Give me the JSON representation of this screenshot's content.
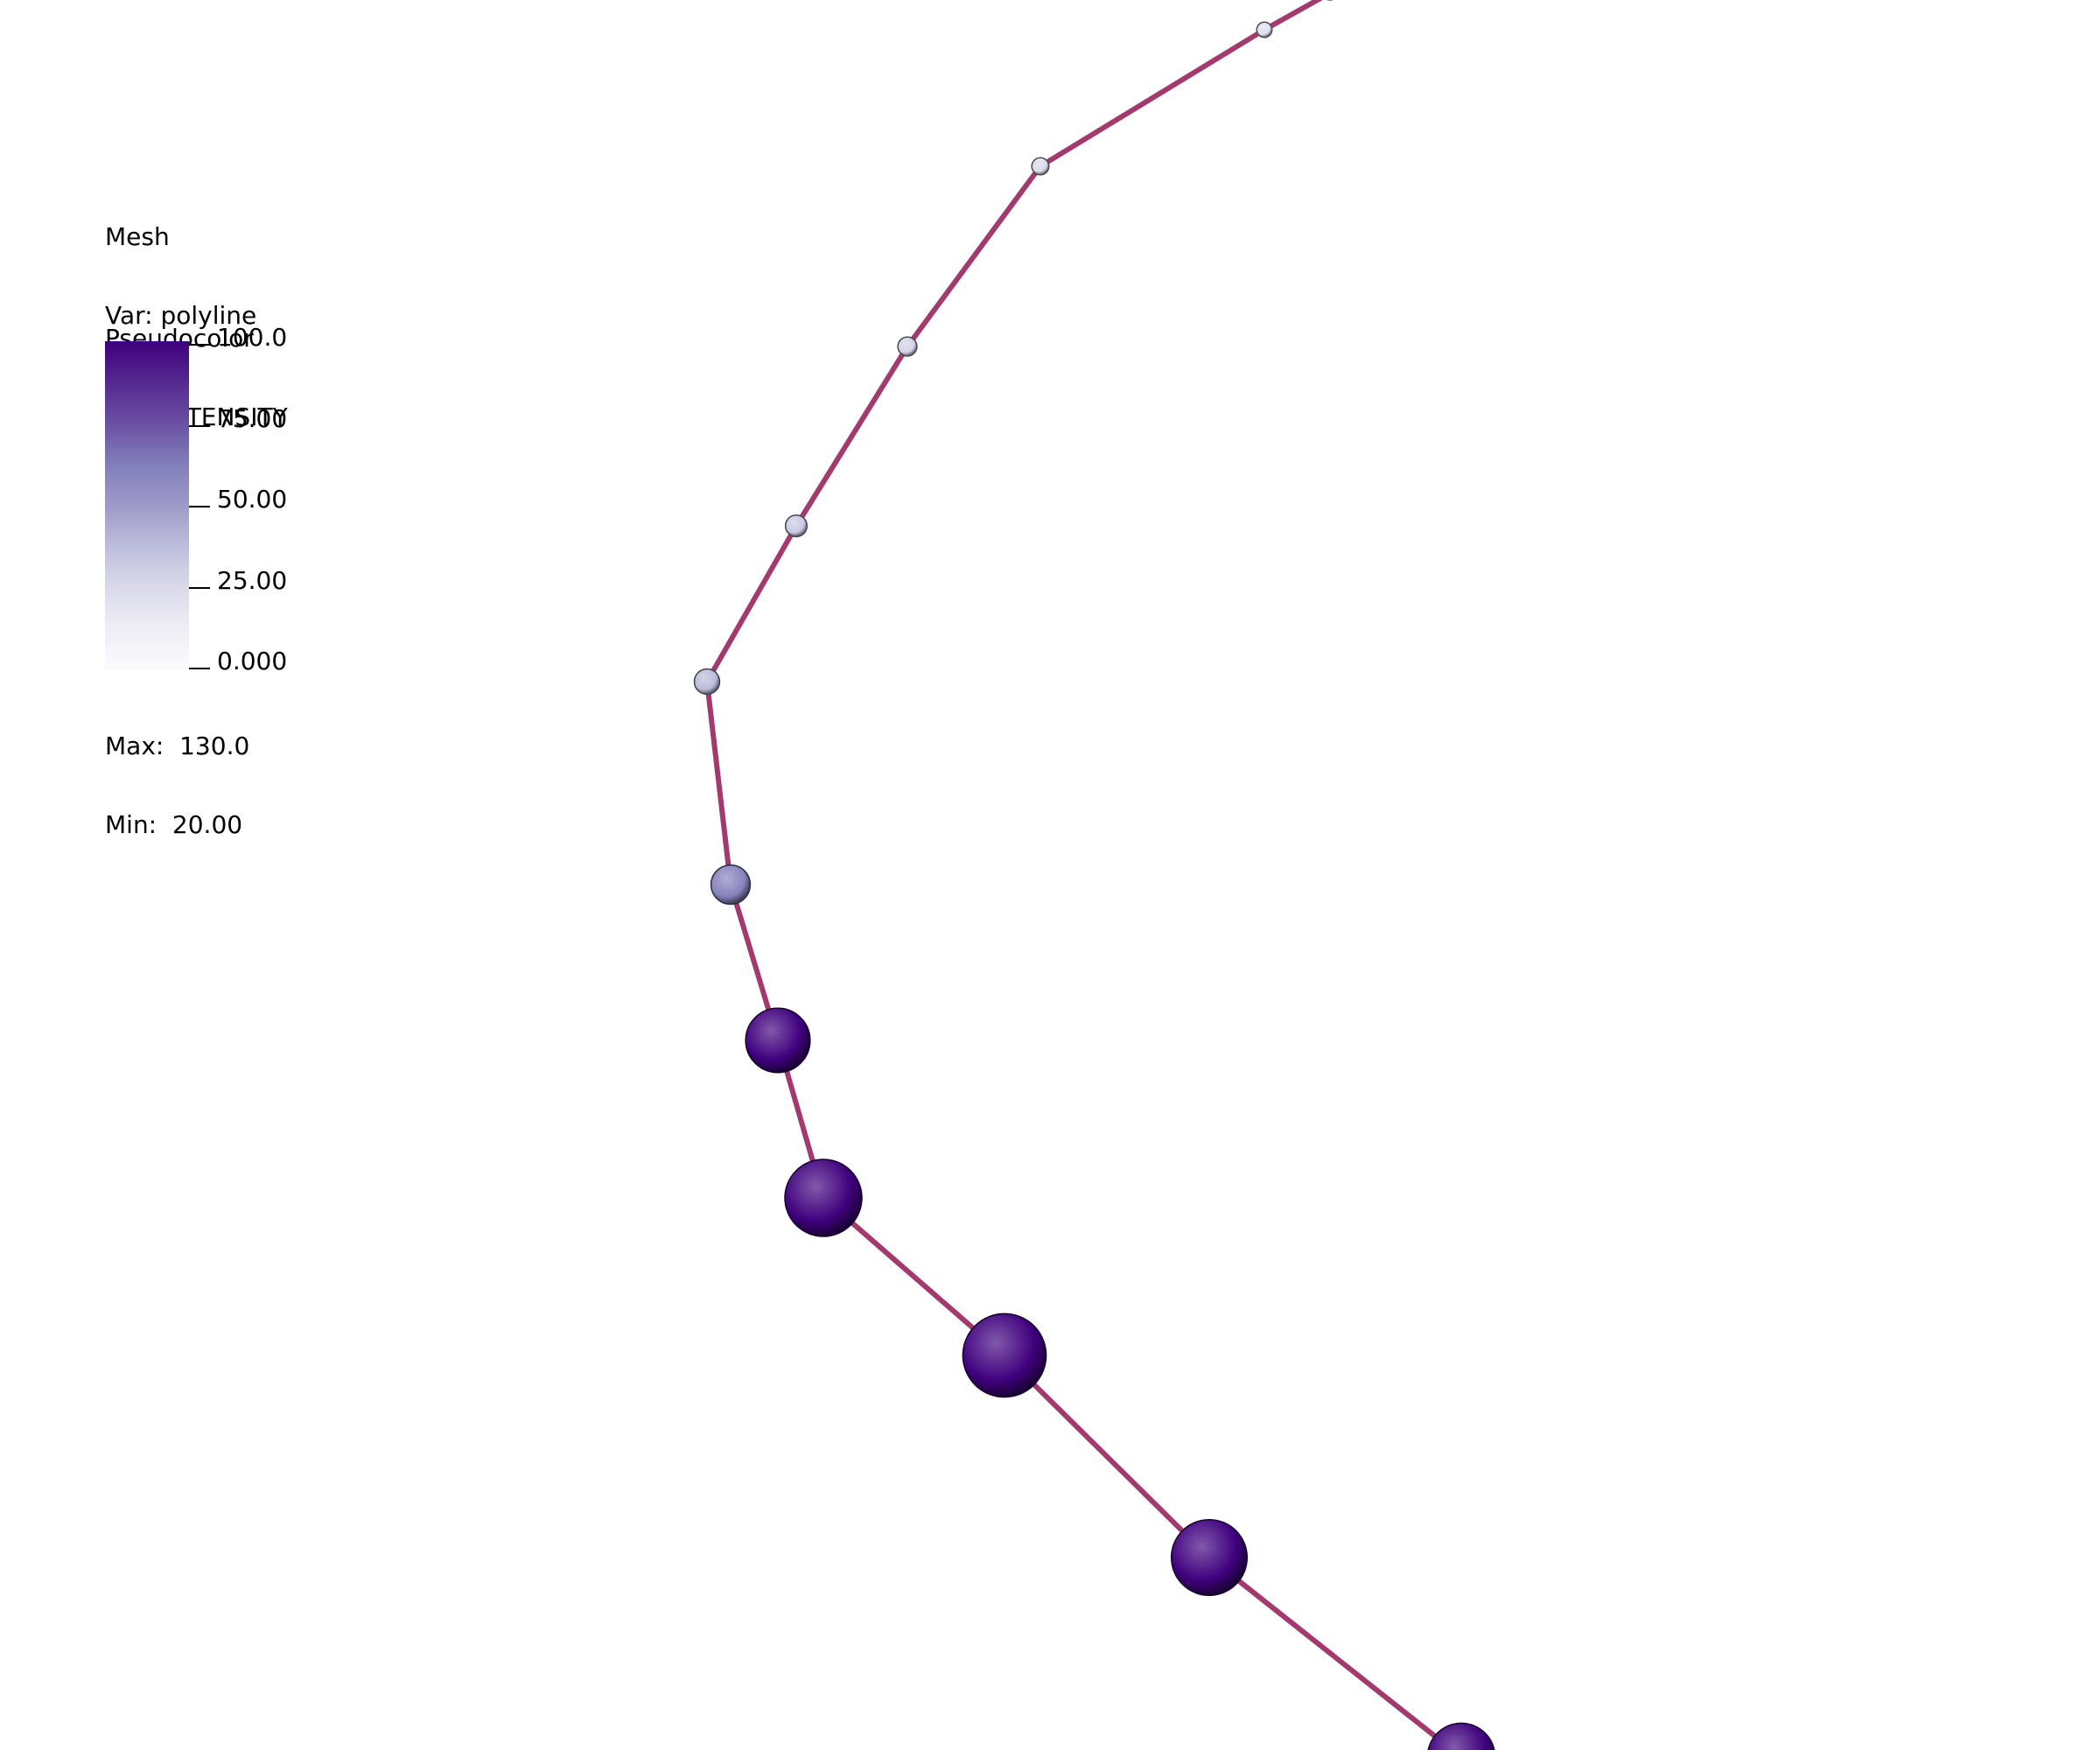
{
  "legend": {
    "mesh": {
      "title": "Mesh",
      "var": "Var: polyline"
    },
    "pseudocolor": {
      "title": "Pseudocolor",
      "var": "Var: INTENSITY",
      "ticks": [
        "100.0",
        "75.00",
        "50.00",
        "25.00",
        "0.000"
      ],
      "max": "Max:  130.0",
      "min": "Min:  20.00",
      "colors": [
        "#3f007d",
        "#54278f",
        "#6a51a3",
        "#807dba",
        "#9e9ac8",
        "#bcbddc",
        "#dadaeb",
        "#efedf5",
        "#fcfbfd"
      ]
    }
  },
  "plot": {
    "line_color": "#a33a6e",
    "points": [
      {
        "intensity": 20
      },
      {
        "intensity": 22
      },
      {
        "intensity": 25
      },
      {
        "intensity": 28
      },
      {
        "intensity": 32
      },
      {
        "intensity": 38
      },
      {
        "intensity": 60
      },
      {
        "intensity": 100
      },
      {
        "intensity": 120
      },
      {
        "intensity": 130
      },
      {
        "intensity": 118
      },
      {
        "intensity": 105
      }
    ]
  }
}
